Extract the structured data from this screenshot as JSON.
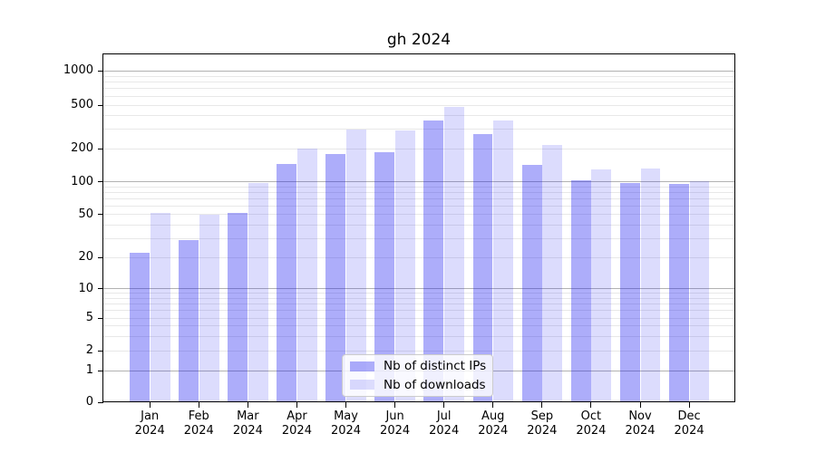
{
  "chart_data": {
    "type": "bar",
    "title": "gh 2024",
    "categories": [
      "Jan 2024",
      "Feb 2024",
      "Mar 2024",
      "Apr 2024",
      "May 2024",
      "Jun 2024",
      "Jul 2024",
      "Aug 2024",
      "Sep 2024",
      "Oct 2024",
      "Nov 2024",
      "Dec 2024"
    ],
    "series": [
      {
        "name": "Nb of distinct IPs",
        "color": "rgba(15,15,240,0.34)",
        "values": [
          22,
          29,
          52,
          145,
          178,
          186,
          364,
          272,
          144,
          103,
          97,
          96
        ]
      },
      {
        "name": "Nb of downloads",
        "color": "rgba(15,15,240,0.145)",
        "values": [
          52,
          50,
          97,
          200,
          298,
          293,
          478,
          360,
          216,
          129,
          133,
          101
        ]
      }
    ],
    "xlabel": "",
    "ylabel": "",
    "yticks": [
      0,
      1,
      2,
      5,
      10,
      20,
      50,
      100,
      200,
      500,
      1000
    ],
    "ylim": [
      0,
      1000
    ],
    "yscale": "symlog",
    "grid": "both",
    "legend_position": "lower center",
    "colors": {
      "background": "#ffffff",
      "axis": "#000000",
      "grid_major_decade": "rgba(0,0,0,0.30)",
      "grid_other": "rgba(0,0,0,0.09)"
    }
  }
}
